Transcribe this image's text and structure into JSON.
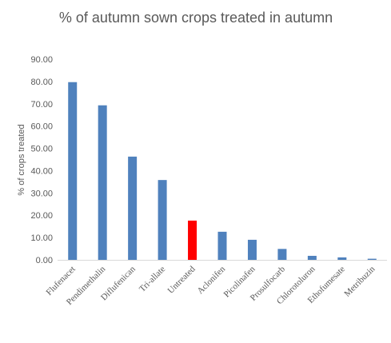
{
  "chart_data": {
    "type": "bar",
    "title": "% of autumn sown crops treated in autumn",
    "xlabel": "",
    "ylabel": "% of crops treated",
    "ylim": [
      0,
      90
    ],
    "ytick_step": 10,
    "ytick_labels": [
      "0.00",
      "10.00",
      "20.00",
      "30.00",
      "40.00",
      "50.00",
      "60.00",
      "70.00",
      "80.00",
      "90.00"
    ],
    "grid": false,
    "legend": "none",
    "categories": [
      "Flufenacet",
      "Pendimethalin",
      "Diflufenican",
      "Tri-allate",
      "Untreated",
      "Aclonifen",
      "Picolinafen",
      "Prosulfocarb",
      "Chlorotoluron",
      "Ethofumesate",
      "Metribuzin"
    ],
    "values": [
      79.7,
      69.3,
      46.3,
      35.8,
      17.6,
      12.6,
      9.0,
      4.9,
      1.8,
      1.1,
      0.5
    ],
    "bar_colors": [
      "#4f81bd",
      "#4f81bd",
      "#4f81bd",
      "#4f81bd",
      "#ff0000",
      "#4f81bd",
      "#4f81bd",
      "#4f81bd",
      "#4f81bd",
      "#4f81bd",
      "#4f81bd"
    ],
    "axis_color": "#d9d9d9",
    "text_color": "#595959"
  }
}
